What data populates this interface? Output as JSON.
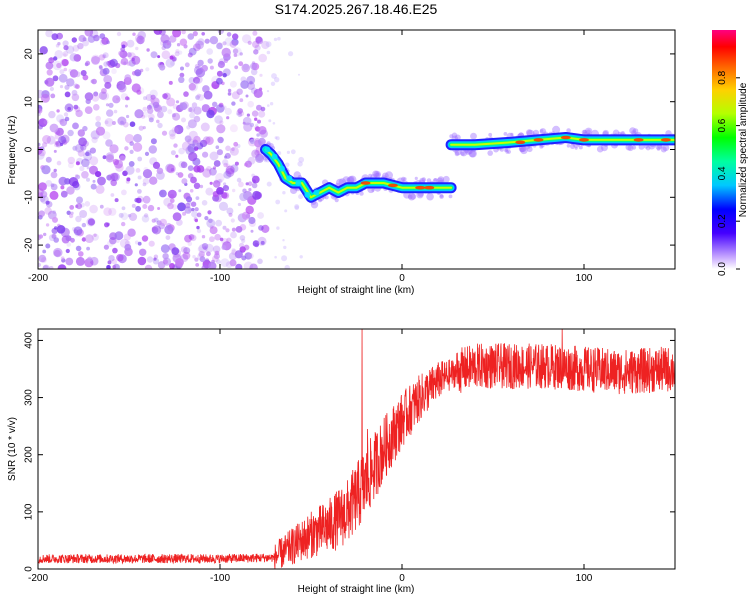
{
  "title": "S174.2025.267.18.46.E25",
  "colors": {
    "snr_line": "#ee2222",
    "scatter": "#8a2be2",
    "frame": "#000000"
  },
  "chart_data": [
    {
      "type": "heatmap",
      "name": "spectrogram",
      "xlabel": "Height of straight line (km)",
      "ylabel": "Frequency (Hz)",
      "xlim": [
        -200,
        150
      ],
      "ylim": [
        -25,
        25
      ],
      "xticks": [
        -200,
        -100,
        0,
        100
      ],
      "xtick_labels": [
        "-200",
        "-100",
        "0",
        "100"
      ],
      "yticks": [
        -20,
        -10,
        0,
        10,
        20
      ],
      "ytick_labels": [
        "-20",
        "-10",
        "0",
        "10",
        "20"
      ],
      "noise_region_km": [
        -200,
        -75
      ],
      "track": [
        {
          "x": -75,
          "y": 0
        },
        {
          "x": -72,
          "y": -1
        },
        {
          "x": -68,
          "y": -3
        },
        {
          "x": -64,
          "y": -6
        },
        {
          "x": -60,
          "y": -7
        },
        {
          "x": -55,
          "y": -7
        },
        {
          "x": -50,
          "y": -10
        },
        {
          "x": -45,
          "y": -9
        },
        {
          "x": -40,
          "y": -8
        },
        {
          "x": -35,
          "y": -9
        },
        {
          "x": -30,
          "y": -8
        },
        {
          "x": -25,
          "y": -8
        },
        {
          "x": -20,
          "y": -7
        },
        {
          "x": -10,
          "y": -7
        },
        {
          "x": 0,
          "y": -8
        },
        {
          "x": 10,
          "y": -8
        },
        {
          "x": 20,
          "y": -8
        },
        {
          "x": 27,
          "y": -8
        },
        {
          "x": 27,
          "y": 1
        },
        {
          "x": 40,
          "y": 1
        },
        {
          "x": 60,
          "y": 1.5
        },
        {
          "x": 75,
          "y": 2
        },
        {
          "x": 90,
          "y": 2.5
        },
        {
          "x": 100,
          "y": 2
        },
        {
          "x": 110,
          "y": 2
        },
        {
          "x": 130,
          "y": 2
        },
        {
          "x": 150,
          "y": 2
        }
      ],
      "colorbar": {
        "label": "Normalized spectral amplitude",
        "range": [
          0,
          1
        ],
        "ticks": [
          0.0,
          0.2,
          0.4,
          0.6,
          0.8
        ],
        "tick_labels": [
          "0.0",
          "0.2",
          "0.4",
          "0.6",
          "0.8"
        ]
      }
    },
    {
      "type": "line",
      "name": "snr",
      "xlabel": "Height of straight line (km)",
      "ylabel": "SNR (10 * v/v)",
      "xlim": [
        -200,
        150
      ],
      "ylim": [
        0,
        420
      ],
      "xticks": [
        -200,
        -100,
        0,
        100
      ],
      "xtick_labels": [
        "-200",
        "-100",
        "0",
        "100"
      ],
      "yticks": [
        0,
        100,
        200,
        300,
        400
      ],
      "ytick_labels": [
        "0",
        "100",
        "200",
        "300",
        "400"
      ],
      "trend": [
        {
          "x": -200,
          "y": 18
        },
        {
          "x": -150,
          "y": 18
        },
        {
          "x": -100,
          "y": 18
        },
        {
          "x": -70,
          "y": 20
        },
        {
          "x": -60,
          "y": 40
        },
        {
          "x": -50,
          "y": 60
        },
        {
          "x": -40,
          "y": 75
        },
        {
          "x": -30,
          "y": 100
        },
        {
          "x": -20,
          "y": 150
        },
        {
          "x": -10,
          "y": 210
        },
        {
          "x": 0,
          "y": 260
        },
        {
          "x": 10,
          "y": 300
        },
        {
          "x": 20,
          "y": 330
        },
        {
          "x": 30,
          "y": 345
        },
        {
          "x": 40,
          "y": 355
        },
        {
          "x": 60,
          "y": 355
        },
        {
          "x": 80,
          "y": 355
        },
        {
          "x": 100,
          "y": 350
        },
        {
          "x": 120,
          "y": 345
        },
        {
          "x": 150,
          "y": 350
        }
      ],
      "peaks": [
        {
          "x": -22,
          "y": 420
        },
        {
          "x": -19,
          "y": 245
        },
        {
          "x": 88,
          "y": 420
        }
      ]
    }
  ]
}
